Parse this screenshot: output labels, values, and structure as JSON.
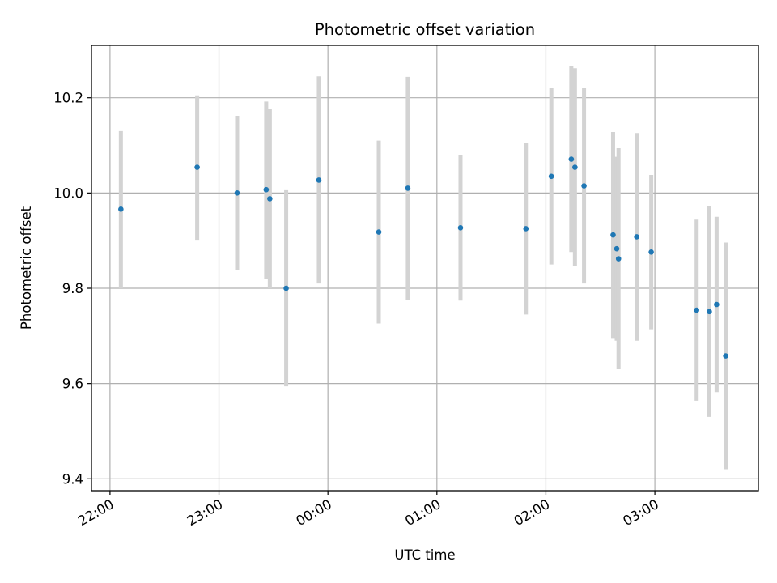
{
  "chart_data": {
    "type": "scatter",
    "title": "Photometric offset variation",
    "xlabel": "UTC time",
    "ylabel": "Photometric offset",
    "x_tick_labels": [
      "22:00",
      "23:00",
      "00:00",
      "01:00",
      "02:00",
      "03:00"
    ],
    "y_tick_labels": [
      "9.4",
      "9.6",
      "9.8",
      "10.0",
      "10.2"
    ],
    "y_ticks": [
      9.4,
      9.6,
      9.8,
      10.0,
      10.2
    ],
    "xlim_hours": [
      21.83,
      27.95
    ],
    "ylim": [
      9.375,
      10.31
    ],
    "grid": true,
    "colors": {
      "points": "#1f77b4",
      "errorbars": "#d3d3d3",
      "grid": "#b0b0b0"
    },
    "series": [
      {
        "points": [
          {
            "t": "22:06",
            "y": 9.966,
            "lo": 9.8,
            "hi": 10.13
          },
          {
            "t": "22:48",
            "y": 10.054,
            "lo": 9.9,
            "hi": 10.205
          },
          {
            "t": "23:10",
            "y": 10.0,
            "lo": 9.838,
            "hi": 10.162
          },
          {
            "t": "23:26",
            "y": 10.007,
            "lo": 9.82,
            "hi": 10.192
          },
          {
            "t": "23:28",
            "y": 9.988,
            "lo": 9.8,
            "hi": 10.176
          },
          {
            "t": "23:37",
            "y": 9.8,
            "lo": 9.594,
            "hi": 10.006
          },
          {
            "t": "23:55",
            "y": 10.027,
            "lo": 9.81,
            "hi": 10.245
          },
          {
            "t": "00:28",
            "y": 9.918,
            "lo": 9.726,
            "hi": 10.11
          },
          {
            "t": "00:44",
            "y": 10.01,
            "lo": 9.776,
            "hi": 10.244
          },
          {
            "t": "01:13",
            "y": 9.927,
            "lo": 9.774,
            "hi": 10.08
          },
          {
            "t": "01:49",
            "y": 9.925,
            "lo": 9.745,
            "hi": 10.106
          },
          {
            "t": "02:03",
            "y": 10.035,
            "lo": 9.85,
            "hi": 10.22
          },
          {
            "t": "02:14",
            "y": 10.071,
            "lo": 9.876,
            "hi": 10.266
          },
          {
            "t": "02:16",
            "y": 10.054,
            "lo": 9.846,
            "hi": 10.262
          },
          {
            "t": "02:21",
            "y": 10.015,
            "lo": 9.81,
            "hi": 10.22
          },
          {
            "t": "02:37",
            "y": 9.912,
            "lo": 9.694,
            "hi": 10.128
          },
          {
            "t": "02:39",
            "y": 9.883,
            "lo": 9.69,
            "hi": 10.076
          },
          {
            "t": "02:40",
            "y": 9.862,
            "lo": 9.63,
            "hi": 10.094
          },
          {
            "t": "02:50",
            "y": 9.908,
            "lo": 9.69,
            "hi": 10.126
          },
          {
            "t": "02:58",
            "y": 9.876,
            "lo": 9.714,
            "hi": 10.038
          },
          {
            "t": "03:23",
            "y": 9.754,
            "lo": 9.564,
            "hi": 9.944
          },
          {
            "t": "03:30",
            "y": 9.751,
            "lo": 9.53,
            "hi": 9.972
          },
          {
            "t": "03:34",
            "y": 9.766,
            "lo": 9.582,
            "hi": 9.95
          },
          {
            "t": "03:39",
            "y": 9.658,
            "lo": 9.42,
            "hi": 9.896
          }
        ]
      }
    ]
  }
}
